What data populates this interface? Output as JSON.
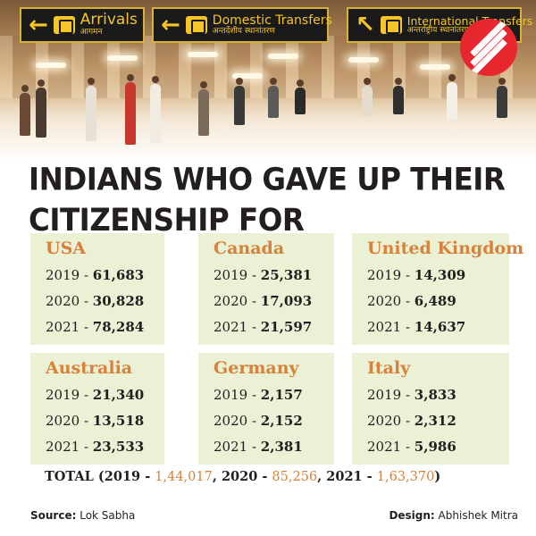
{
  "signs": [
    {
      "arrow": "←",
      "english": "Arrivals",
      "hindi": "आगमन"
    },
    {
      "arrow": "←",
      "english": "Domestic Transfers",
      "hindi": "अन्तर्देशीय स्थानांतरण"
    },
    {
      "arrow": "↖",
      "english": "International Transfers",
      "hindi": "अन्तर्राष्ट्रीय स्थानांतरण"
    }
  ],
  "headline": {
    "line1": "INDIANS WHO GAVE UP THEIR",
    "line2": "CITIZENSHIP FOR"
  },
  "countries": [
    {
      "name": "USA",
      "rows": [
        {
          "year": "2019",
          "sep": " - ",
          "value": "61,683"
        },
        {
          "year": "2020",
          "sep": " - ",
          "value": "30,828"
        },
        {
          "year": "2021",
          "sep": " - ",
          "value": "78,284"
        }
      ]
    },
    {
      "name": "Canada",
      "rows": [
        {
          "year": "2019",
          "sep": " - ",
          "value": "25,381"
        },
        {
          "year": "2020",
          "sep": " - ",
          "value": "17,093"
        },
        {
          "year": "2021",
          "sep": " - ",
          "value": "21,597"
        }
      ]
    },
    {
      "name": "United Kingdom",
      "rows": [
        {
          "year": "2019",
          "sep": " - ",
          "value": "14,309"
        },
        {
          "year": "2020",
          "sep": " - ",
          "value": "6,489"
        },
        {
          "year": "2021",
          "sep": " - ",
          "value": "14,637"
        }
      ]
    },
    {
      "name": "Australia",
      "rows": [
        {
          "year": "2019",
          "sep": " - ",
          "value": "21,340"
        },
        {
          "year": "2020",
          "sep": " - ",
          "value": "13,518"
        },
        {
          "year": "2021",
          "sep": " - ",
          "value": "23,533"
        }
      ]
    },
    {
      "name": "Germany",
      "rows": [
        {
          "year": "2019",
          "sep": " - ",
          "value": "2,157"
        },
        {
          "year": "2020",
          "sep": " - ",
          "value": "2,152"
        },
        {
          "year": "2021",
          "sep": " - ",
          "value": "2,381"
        }
      ]
    },
    {
      "name": "Italy",
      "rows": [
        {
          "year": "2019",
          "sep": " - ",
          "value": "3,833"
        },
        {
          "year": "2020",
          "sep": " - ",
          "value": "2,312"
        },
        {
          "year": "2021",
          "sep": " - ",
          "value": "5,986"
        }
      ]
    }
  ],
  "total": {
    "label": "TOTAL",
    "open": " (2019 - ",
    "v2019": "1,44,017",
    "mid1": ", 2020 - ",
    "v2020": "85,256",
    "mid2": ", 2021 - ",
    "v2021": "1,63,370",
    "close": ")"
  },
  "footer": {
    "source_label": "Source:",
    "source": " Lok Sabha",
    "design_label": "Design:",
    "designer": " Abhishek Mitra"
  },
  "colors": {
    "accent": "#d9813a",
    "box_bg": "#eaf1d4",
    "logo": "#e8262d",
    "sign_text": "#f5c52a"
  },
  "icons": [
    "suitcase-icon",
    "plane-icon",
    "plane-icon",
    "indian-express-logo"
  ]
}
